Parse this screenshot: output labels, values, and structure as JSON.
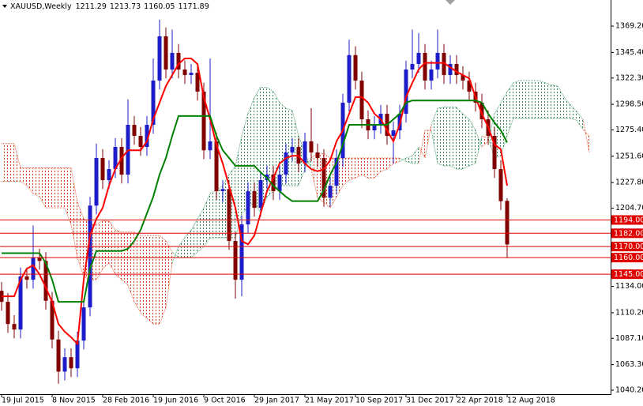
{
  "chart_data": {
    "type": "candlestick",
    "title": "XAUUSD,Weekly",
    "x": [
      "19 Jul 2015",
      null,
      null,
      null,
      null,
      null,
      null,
      null,
      "8 Nov 2015",
      null,
      null,
      null,
      null,
      null,
      null,
      null,
      "28 Feb 2016",
      null,
      null,
      null,
      null,
      null,
      null,
      null,
      "19 Jun 2016",
      null,
      null,
      null,
      null,
      null,
      null,
      null,
      "9 Oct 2016",
      null,
      null,
      null,
      null,
      null,
      null,
      null,
      "29 Jan 2017",
      null,
      null,
      null,
      null,
      null,
      null,
      null,
      "21 May 2017",
      null,
      null,
      null,
      null,
      null,
      null,
      null,
      "10 Sep 2017",
      null,
      null,
      null,
      null,
      null,
      null,
      null,
      "31 Dec 2017",
      null,
      null,
      null,
      null,
      null,
      null,
      null,
      "22 Apr 2018",
      null,
      null,
      null,
      null,
      null,
      null,
      null,
      "12 Aug 2018",
      null,
      null,
      null,
      null,
      null,
      null,
      null,
      null,
      null,
      null,
      null,
      null,
      null
    ],
    "ohlc": {
      "up_color": "#1c1cc8",
      "down_color": "#800000",
      "open": [
        1130,
        1120,
        1100,
        1095,
        1143,
        1140,
        1160,
        1157,
        1121,
        1086,
        1057,
        1070,
        1060,
        1085,
        1115,
        1207,
        1250,
        1230,
        1240,
        1260,
        1235,
        1280,
        1270,
        1260,
        1280,
        1320,
        1360,
        1330,
        1345,
        1330,
        1325,
        1327,
        1310,
        1257,
        1265,
        1220,
        1222,
        1175,
        1140,
        1190,
        1220,
        1205,
        1230,
        1235,
        1220,
        1235,
        1255,
        1260,
        1245,
        1265,
        1255,
        1250,
        1214,
        1225,
        1250,
        1300,
        1343,
        1320,
        1285,
        1275,
        1280,
        1290,
        1270,
        1275,
        1290,
        1330,
        1335,
        1345,
        1320,
        1330,
        1345,
        1325,
        1335,
        1325,
        1320,
        1310,
        1300,
        1285,
        1270,
        1240,
        1211.29,
        null,
        null,
        null,
        null,
        null,
        null,
        null,
        null,
        null,
        null,
        null,
        null,
        null
      ],
      "high": [
        1138,
        1128,
        1108,
        1151,
        1151,
        1189,
        1168,
        1165,
        1129,
        1094,
        1078,
        1078,
        1093,
        1123,
        1215,
        1263,
        1258,
        1248,
        1268,
        1268,
        1303,
        1288,
        1278,
        1288,
        1340,
        1375,
        1368,
        1366,
        1353,
        1338,
        1335,
        1335,
        1318,
        1340,
        1273,
        1230,
        1230,
        1183,
        1198,
        1228,
        1228,
        1238,
        1243,
        1243,
        1243,
        1263,
        1268,
        1268,
        1273,
        1295,
        1263,
        1258,
        1233,
        1258,
        1308,
        1357,
        1351,
        1328,
        1293,
        1288,
        1298,
        1298,
        1283,
        1298,
        1338,
        1366,
        1363,
        1353,
        1338,
        1366,
        1353,
        1343,
        1343,
        1333,
        1328,
        1318,
        1308,
        1293,
        1278,
        1248,
        1213.73,
        null,
        null,
        null,
        null,
        null,
        null,
        null,
        null,
        null,
        null,
        null,
        null,
        null
      ],
      "low": [
        1112,
        1092,
        1087,
        1087,
        1132,
        1132,
        1149,
        1113,
        1078,
        1046,
        1049,
        1052,
        1052,
        1077,
        1107,
        1199,
        1222,
        1222,
        1232,
        1227,
        1227,
        1262,
        1252,
        1252,
        1272,
        1312,
        1322,
        1322,
        1322,
        1317,
        1317,
        1302,
        1249,
        1249,
        1212,
        1210,
        1167,
        1123,
        1125,
        1182,
        1197,
        1197,
        1222,
        1212,
        1212,
        1227,
        1247,
        1237,
        1237,
        1247,
        1242,
        1206,
        1206,
        1217,
        1242,
        1292,
        1312,
        1277,
        1267,
        1267,
        1272,
        1262,
        1245,
        1267,
        1282,
        1322,
        1327,
        1312,
        1312,
        1322,
        1317,
        1317,
        1317,
        1312,
        1302,
        1292,
        1277,
        1262,
        1232,
        1203,
        1160.05,
        null,
        null,
        null,
        null,
        null,
        null,
        null,
        null,
        null,
        null,
        null,
        null,
        null
      ],
      "close": [
        1120,
        1100,
        1095,
        1143,
        1140,
        1160,
        1157,
        1121,
        1086,
        1057,
        1070,
        1060,
        1085,
        1115,
        1207,
        1250,
        1230,
        1240,
        1260,
        1235,
        1280,
        1270,
        1260,
        1280,
        1320,
        1360,
        1330,
        1345,
        1330,
        1325,
        1327,
        1310,
        1257,
        1265,
        1220,
        1222,
        1175,
        1140,
        1190,
        1220,
        1205,
        1230,
        1235,
        1220,
        1235,
        1255,
        1260,
        1245,
        1265,
        1255,
        1250,
        1214,
        1225,
        1250,
        1300,
        1343,
        1320,
        1285,
        1275,
        1280,
        1290,
        1270,
        1275,
        1290,
        1330,
        1335,
        1345,
        1320,
        1330,
        1345,
        1325,
        1335,
        1325,
        1320,
        1310,
        1300,
        1285,
        1270,
        1240,
        1211,
        1171.89,
        null,
        null,
        null,
        null,
        null,
        null,
        null,
        null,
        null,
        null,
        null,
        null,
        null
      ]
    },
    "series": [
      {
        "color": "#ff0000",
        "values": [
          1125,
          1125,
          1125,
          1140,
          1150,
          1153,
          1145,
          1133,
          1120,
          1100,
          1093,
          1088,
          1082,
          1140,
          1180,
          1195,
          1205,
          1225,
          1240,
          1250,
          1257,
          1257,
          1257,
          1265,
          1285,
          1300,
          1315,
          1325,
          1335,
          1340,
          1340,
          1335,
          1305,
          1285,
          1262,
          1245,
          1225,
          1205,
          1175,
          1172,
          1180,
          1200,
          1220,
          1232,
          1245,
          1250,
          1252,
          1252,
          1245,
          1240,
          1238,
          1240,
          1248,
          1265,
          1275,
          1290,
          1305,
          1305,
          1300,
          1290,
          1285,
          1275,
          1265,
          1280,
          1305,
          1318,
          1330,
          1336,
          1336,
          1336,
          1336,
          1332,
          1328,
          1325,
          1322,
          1305,
          1290,
          1278,
          1262,
          1258,
          1225,
          null,
          null,
          null,
          null,
          null,
          null,
          null,
          null,
          null,
          null,
          null,
          null,
          null
        ]
      },
      {
        "color": "#008000",
        "values": [
          1164,
          1164,
          1164,
          1164,
          1164,
          1164,
          1164,
          1155,
          1140,
          1120,
          1120,
          1120,
          1120,
          1120,
          1150,
          1166,
          1166,
          1166,
          1166,
          1166,
          1168,
          1175,
          1185,
          1200,
          1215,
          1235,
          1250,
          1270,
          1288,
          1288,
          1288,
          1288,
          1288,
          1288,
          1270,
          1257,
          1250,
          1243,
          1243,
          1243,
          1243,
          1237,
          1232,
          1225,
          1220,
          1215,
          1211,
          1211,
          1211,
          1211,
          1211,
          1221,
          1235,
          1246,
          1262,
          1280,
          1280,
          1280,
          1280,
          1280,
          1280,
          1280,
          1285,
          1290,
          1300,
          1302,
          1302,
          1302,
          1302,
          1302,
          1302,
          1302,
          1302,
          1302,
          1302,
          1302,
          1300,
          1290,
          1282,
          1275,
          1264,
          null,
          null,
          null,
          null,
          null,
          null,
          null,
          null,
          null,
          null,
          null,
          null,
          null
        ]
      }
    ],
    "cloud": {
      "up_color": "#2e8b57",
      "down_color": "#e0401a",
      "span_a": [
        1229,
        1229,
        1229,
        1229,
        1225,
        1218,
        1215,
        1205,
        1205,
        1205,
        1205,
        1190,
        1160,
        1143,
        1140,
        1140,
        1150,
        1155,
        1145,
        1140,
        1135,
        1120,
        1110,
        1105,
        1100,
        1100,
        1115,
        1155,
        1170,
        1178,
        1185,
        1195,
        1205,
        1218,
        1221,
        1225,
        1235,
        1243,
        1270,
        1290,
        1305,
        1314,
        1314,
        1310,
        1300,
        1295,
        1293,
        1270,
        1255,
        1240,
        1214,
        1210,
        1205,
        1215,
        1225,
        1230,
        1232,
        1235,
        1232,
        1232,
        1238,
        1240,
        1245,
        1247,
        1250,
        1252,
        1260,
        1250,
        1280,
        1295,
        1296,
        1296,
        1296,
        1290,
        1285,
        1275,
        1260,
        1265,
        1290,
        1300,
        1310,
        1318,
        1320,
        1320,
        1320,
        1320,
        1318,
        1316,
        1315,
        1305,
        1298,
        1292,
        1285,
        1255
      ],
      "span_b": [
        1263,
        1263,
        1263,
        1241,
        1241,
        1241,
        1241,
        1241,
        1241,
        1241,
        1241,
        1241,
        1210,
        1195,
        1190,
        1190,
        1193,
        1193,
        1185,
        1183,
        1183,
        1183,
        1180,
        1180,
        1180,
        1180,
        1175,
        1165,
        1160,
        1160,
        1160,
        1165,
        1170,
        1178,
        1178,
        1178,
        1178,
        1178,
        1200,
        1205,
        1210,
        1200,
        1215,
        1220,
        1225,
        1225,
        1225,
        1225,
        1240,
        1250,
        1254,
        1254,
        1250,
        1250,
        1250,
        1250,
        1250,
        1250,
        1250,
        1250,
        1250,
        1250,
        1250,
        1250,
        1247,
        1245,
        1245,
        1275,
        1275,
        1245,
        1243,
        1243,
        1240,
        1240,
        1243,
        1245,
        1270,
        1268,
        1250,
        1252,
        1270,
        1286,
        1286,
        1286,
        1286,
        1286,
        1286,
        1286,
        1286,
        1286,
        1286,
        1284,
        1276,
        1270
      ]
    },
    "hlines": {
      "color": "#e00000",
      "lines": [
        {
          "value": 1194,
          "label": "1194.00"
        },
        {
          "value": 1182,
          "label": "1182.00"
        },
        {
          "value": 1170,
          "label": "1170.00"
        },
        {
          "value": 1160,
          "label": "1160.00"
        },
        {
          "value": 1145,
          "label": "1145.00"
        }
      ]
    },
    "ylim": [
      1036.6,
      1392.8
    ],
    "yticks": [
      {
        "value": 1369.2,
        "label": "1369.20"
      },
      {
        "value": 1345.4,
        "label": "1345.40"
      },
      {
        "value": 1322.3,
        "label": "1322.30"
      },
      {
        "value": 1298.5,
        "label": "1298.50"
      },
      {
        "value": 1275.4,
        "label": "1275.40"
      },
      {
        "value": 1251.6,
        "label": "1251.60"
      },
      {
        "value": 1227.8,
        "label": "1227.80"
      },
      {
        "value": 1204.7,
        "label": "1204.70"
      },
      {
        "value": 1134,
        "label": "1134.00"
      },
      {
        "value": 1110.2,
        "label": "1110.20"
      },
      {
        "value": 1087.1,
        "label": "1087.10"
      },
      {
        "value": 1063.3,
        "label": "1063.30"
      },
      {
        "value": 1040.2,
        "label": "1040.20"
      }
    ],
    "grid": false
  }
}
